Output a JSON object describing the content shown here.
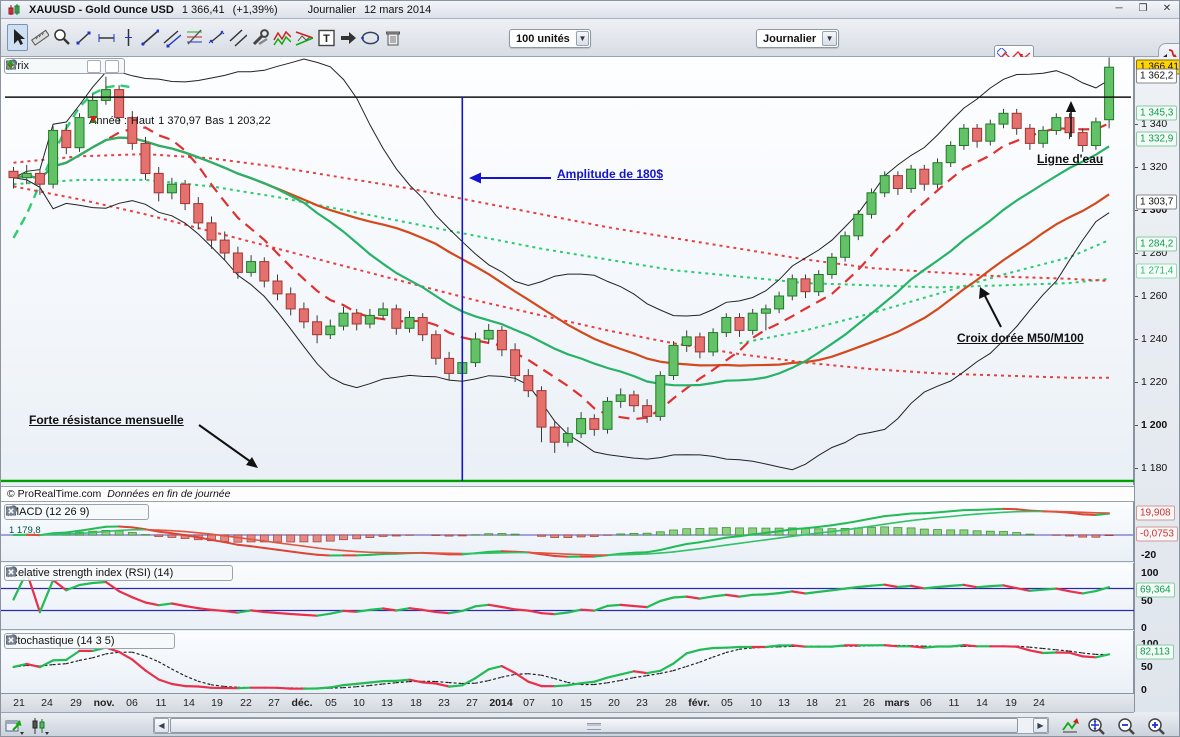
{
  "window": {
    "symbol": "XAUUSD - Gold Ounce USD",
    "price": "1 366,41",
    "change": "(+1,39%)",
    "period": "Journalier",
    "date": "12 mars 2014",
    "buttons": [
      "minimize",
      "restore",
      "close"
    ]
  },
  "toolbar": {
    "units_value": "100 unités",
    "period_value": "Journalier",
    "tools": [
      "select-cursor",
      "ruler",
      "zoom",
      "segment",
      "horizontal-segment",
      "vertical-line",
      "trendline",
      "multi-line",
      "fibonacci",
      "short-line",
      "parallel-lines",
      "drawing-tools",
      "pattern-zigzag",
      "pattern-triangle",
      "text",
      "arrow",
      "ellipse",
      "trash"
    ]
  },
  "price_panel": {
    "label": "Prix",
    "stats_prefix": "Année :",
    "high_label": "Haut",
    "high": "1 370,97",
    "low_label": "Bas",
    "low": "1 203,22",
    "bottom_left_price": "1 179,8"
  },
  "annotations": {
    "amplitude": {
      "text": "Amplitude de 180$",
      "color": "#1414cc"
    },
    "ligne_eau": {
      "text": "Ligne d'eau",
      "color": "#111111"
    },
    "croix": {
      "text": "Croix dorée M50/M100",
      "color": "#111111"
    },
    "resistance": {
      "text": "Forte résistance mensuelle",
      "color": "#111111"
    }
  },
  "copyright": {
    "site": "© ProRealTime.com",
    "note": "Données en fin de journée"
  },
  "axis": {
    "ticks": [
      {
        "label": "1 340",
        "price": 1340,
        "bold": false
      },
      {
        "label": "1 320",
        "price": 1320,
        "bold": false
      },
      {
        "label": "1 300",
        "price": 1300,
        "bold": true
      },
      {
        "label": "1 280",
        "price": 1280,
        "bold": false
      },
      {
        "label": "1 260",
        "price": 1260,
        "bold": false
      },
      {
        "label": "1 240",
        "price": 1240,
        "bold": false
      },
      {
        "label": "1 220",
        "price": 1220,
        "bold": false
      },
      {
        "label": "1 200",
        "price": 1200,
        "bold": true
      },
      {
        "label": "1 180",
        "price": 1180,
        "bold": false
      }
    ],
    "boxed": [
      {
        "text": "1 366,41",
        "value": 1366.41,
        "bg": "#ffd400",
        "fg": "#111",
        "border": "#8a6d00"
      },
      {
        "text": "1 362,2",
        "value": 1362.2,
        "bg": "#ffffff",
        "fg": "#111",
        "border": "#888888"
      },
      {
        "text": "1 345,3",
        "value": 1345.3,
        "bg": "#f2fcf5",
        "fg": "#0e9a52",
        "border": "#8cc9a6"
      },
      {
        "text": "1 332,9",
        "value": 1332.9,
        "bg": "#f2fcf5",
        "fg": "#0e9a52",
        "border": "#8cc9a6"
      },
      {
        "text": "1 303,7",
        "value": 1303.7,
        "bg": "#ffffff",
        "fg": "#111",
        "border": "#888888"
      },
      {
        "text": "1 284,2",
        "value": 1284.2,
        "bg": "#f2fcf5",
        "fg": "#0e9a52",
        "border": "#8cc9a6"
      },
      {
        "text": "1 271,4",
        "value": 1271.4,
        "bg": "#f6fff9",
        "fg": "#2db870",
        "border": "#9ad7b6"
      }
    ]
  },
  "indicators": {
    "macd": {
      "title": "MACD (12 26 9)",
      "labels": [
        {
          "text": "19,908",
          "value": 19.908,
          "boxed": true,
          "fg": "#c43434",
          "bg": "#fdf6f6",
          "border": "#cf9a9a"
        },
        {
          "text": "-0,0753",
          "value": -0.0753,
          "boxed": true,
          "fg": "#c43434",
          "bg": "#fdf6f6",
          "border": "#cf9a9a"
        },
        {
          "text": "-20",
          "value": -20,
          "boxed": false
        }
      ]
    },
    "rsi": {
      "title": "Relative strength index (RSI) (14)",
      "labels": [
        {
          "text": "100",
          "value": 100,
          "boxed": false
        },
        {
          "text": "69,364",
          "value": 69.364,
          "boxed": true,
          "fg": "#0e9a52",
          "bg": "#f2fcf5",
          "border": "#8cc9a6"
        },
        {
          "text": "50",
          "value": 50,
          "boxed": false
        },
        {
          "text": "0",
          "value": 0,
          "boxed": false
        }
      ]
    },
    "stoch": {
      "title": "Stochastique (14 3 5)",
      "labels": [
        {
          "text": "100",
          "value": 100,
          "boxed": false
        },
        {
          "text": "82,113",
          "value": 82.113,
          "boxed": true,
          "fg": "#0e9a52",
          "bg": "#f2fcf5",
          "border": "#8cc9a6"
        },
        {
          "text": "50",
          "value": 50,
          "boxed": false
        },
        {
          "text": "0",
          "value": 0,
          "boxed": false
        }
      ]
    }
  },
  "xaxis": {
    "labels": [
      "21",
      "24",
      "29",
      "nov.",
      "06",
      "11",
      "14",
      "19",
      "22",
      "27",
      "déc.",
      "05",
      "10",
      "13",
      "18",
      "23",
      "27",
      "2014",
      "07",
      "10",
      "15",
      "20",
      "23",
      "28",
      "févr.",
      "05",
      "10",
      "13",
      "18",
      "21",
      "26",
      "mars",
      "06",
      "11",
      "14",
      "19",
      "24"
    ],
    "bold": [
      "nov.",
      "déc.",
      "2014",
      "févr.",
      "mars"
    ]
  },
  "bottom_bar": {
    "icons_left": [
      "export-chart",
      "chart-style"
    ],
    "icons_right": [
      "auto-fit-chart",
      "zoom-fit",
      "zoom-out",
      "zoom-in"
    ]
  },
  "chart_data": {
    "type": "candlestick",
    "symbol": "XAUUSD",
    "timeframe": "Journalier",
    "ylim": [
      1173,
      1372
    ],
    "year_high": 1370.97,
    "year_low": 1203.22,
    "last_price": 1366.41,
    "trendlines": {
      "horizontal_resistance_price": 1352.5,
      "support_green_price": 1174,
      "amplitude_vline_index": 34
    },
    "candles": [
      [
        1318,
        1320,
        1310,
        1315
      ],
      [
        1315,
        1321,
        1312,
        1317
      ],
      [
        1317,
        1319,
        1307,
        1312
      ],
      [
        1312,
        1339,
        1310,
        1337
      ],
      [
        1337,
        1340,
        1326,
        1329
      ],
      [
        1329,
        1345,
        1327,
        1343
      ],
      [
        1343,
        1354,
        1341,
        1351
      ],
      [
        1351,
        1362,
        1349,
        1356
      ],
      [
        1356,
        1358,
        1340,
        1343
      ],
      [
        1343,
        1346,
        1328,
        1331
      ],
      [
        1331,
        1334,
        1314,
        1317
      ],
      [
        1317,
        1320,
        1304,
        1308
      ],
      [
        1308,
        1315,
        1305,
        1312
      ],
      [
        1312,
        1314,
        1300,
        1303
      ],
      [
        1303,
        1306,
        1291,
        1294
      ],
      [
        1294,
        1297,
        1282,
        1286
      ],
      [
        1286,
        1290,
        1277,
        1280
      ],
      [
        1280,
        1283,
        1268,
        1271
      ],
      [
        1271,
        1279,
        1269,
        1276
      ],
      [
        1276,
        1278,
        1264,
        1267
      ],
      [
        1267,
        1270,
        1258,
        1261
      ],
      [
        1261,
        1264,
        1251,
        1254
      ],
      [
        1254,
        1257,
        1245,
        1248
      ],
      [
        1248,
        1251,
        1238,
        1242
      ],
      [
        1242,
        1249,
        1240,
        1246
      ],
      [
        1246,
        1255,
        1244,
        1252
      ],
      [
        1252,
        1254,
        1244,
        1247
      ],
      [
        1247,
        1254,
        1245,
        1251
      ],
      [
        1251,
        1257,
        1249,
        1254
      ],
      [
        1254,
        1256,
        1242,
        1245
      ],
      [
        1245,
        1253,
        1243,
        1250
      ],
      [
        1250,
        1252,
        1239,
        1242
      ],
      [
        1242,
        1244,
        1228,
        1231
      ],
      [
        1231,
        1234,
        1221,
        1224
      ],
      [
        1224,
        1232,
        1222,
        1229
      ],
      [
        1229,
        1243,
        1227,
        1240
      ],
      [
        1240,
        1247,
        1238,
        1244
      ],
      [
        1244,
        1246,
        1232,
        1235
      ],
      [
        1235,
        1238,
        1220,
        1223
      ],
      [
        1223,
        1226,
        1213,
        1216
      ],
      [
        1216,
        1218,
        1192,
        1199
      ],
      [
        1199,
        1202,
        1187,
        1192
      ],
      [
        1192,
        1199,
        1190,
        1196
      ],
      [
        1196,
        1206,
        1194,
        1203
      ],
      [
        1203,
        1205,
        1195,
        1198
      ],
      [
        1198,
        1213,
        1196,
        1211
      ],
      [
        1211,
        1217,
        1208,
        1214
      ],
      [
        1214,
        1216,
        1206,
        1209
      ],
      [
        1209,
        1212,
        1201,
        1204
      ],
      [
        1204,
        1225,
        1202,
        1223
      ],
      [
        1223,
        1239,
        1221,
        1237
      ],
      [
        1237,
        1244,
        1234,
        1241
      ],
      [
        1241,
        1243,
        1231,
        1234
      ],
      [
        1234,
        1245,
        1232,
        1243
      ],
      [
        1243,
        1252,
        1241,
        1250
      ],
      [
        1250,
        1252,
        1241,
        1244
      ],
      [
        1244,
        1254,
        1242,
        1252
      ],
      [
        1252,
        1256,
        1244,
        1254
      ],
      [
        1254,
        1262,
        1252,
        1260
      ],
      [
        1260,
        1270,
        1258,
        1268
      ],
      [
        1268,
        1270,
        1259,
        1262
      ],
      [
        1262,
        1272,
        1260,
        1270
      ],
      [
        1270,
        1280,
        1268,
        1278
      ],
      [
        1278,
        1290,
        1276,
        1288
      ],
      [
        1288,
        1300,
        1286,
        1298
      ],
      [
        1298,
        1310,
        1296,
        1308
      ],
      [
        1308,
        1318,
        1306,
        1316
      ],
      [
        1316,
        1318,
        1307,
        1310
      ],
      [
        1310,
        1321,
        1308,
        1319
      ],
      [
        1319,
        1321,
        1309,
        1312
      ],
      [
        1312,
        1324,
        1310,
        1322
      ],
      [
        1322,
        1332,
        1320,
        1330
      ],
      [
        1330,
        1340,
        1328,
        1338
      ],
      [
        1338,
        1340,
        1329,
        1332
      ],
      [
        1332,
        1342,
        1330,
        1340
      ],
      [
        1340,
        1347,
        1338,
        1345
      ],
      [
        1345,
        1347,
        1335,
        1338
      ],
      [
        1338,
        1340,
        1328,
        1331
      ],
      [
        1331,
        1339,
        1329,
        1337
      ],
      [
        1337,
        1345,
        1335,
        1343
      ],
      [
        1343,
        1345,
        1333,
        1336
      ],
      [
        1336,
        1338,
        1327,
        1330
      ],
      [
        1330,
        1343,
        1328,
        1341
      ],
      [
        1342,
        1370.97,
        1338,
        1366.41
      ]
    ],
    "overlays": {
      "ma_fast_red_dash_period": 8,
      "ma20_green_period": 20,
      "ma_slow_red_period": 30,
      "bollinger": {
        "period": 20,
        "mult": 2
      },
      "green_dashed_left": {
        "start": 0,
        "step": 1,
        "values": [
          1287,
          1298,
          1312,
          1326,
          1338,
          1348,
          1354,
          1357,
          1358,
          1357
        ]
      },
      "green_dotted_m100": {
        "start": 0,
        "step": 5,
        "values": [
          1312,
          1314,
          1314,
          1311,
          1306,
          1300,
          1294,
          1288,
          1282,
          1277,
          1272,
          1269,
          1266,
          1265,
          1264,
          1265,
          1266,
          1268
        ]
      },
      "green_dotted_2": {
        "start": 55,
        "step": 5,
        "values": [
          1238,
          1244,
          1252,
          1261,
          1270,
          1278,
          1286
        ]
      },
      "red_dotted_upper": {
        "start": 0,
        "step": 5,
        "values": [
          1322,
          1325,
          1326,
          1324,
          1320,
          1315,
          1310,
          1304,
          1298,
          1292,
          1287,
          1282,
          1277,
          1273,
          1271,
          1269,
          1268,
          1267
        ]
      },
      "red_dotted_lower": {
        "start": 0,
        "step": 5,
        "values": [
          1311,
          1305,
          1298,
          1290,
          1282,
          1274,
          1266,
          1258,
          1251,
          1244,
          1238,
          1233,
          1229,
          1226,
          1224,
          1223,
          1222,
          1222
        ]
      }
    },
    "indicators": {
      "macd": {
        "fast": 12,
        "slow": 26,
        "signal": 9,
        "last_line": 19.908,
        "last_hist": -0.0753
      },
      "rsi": {
        "period": 14,
        "last": 69.364,
        "guides": [
          70,
          30
        ]
      },
      "stochastic": {
        "k": 14,
        "k_smooth": 3,
        "d": 5,
        "last": 82.113
      }
    }
  }
}
